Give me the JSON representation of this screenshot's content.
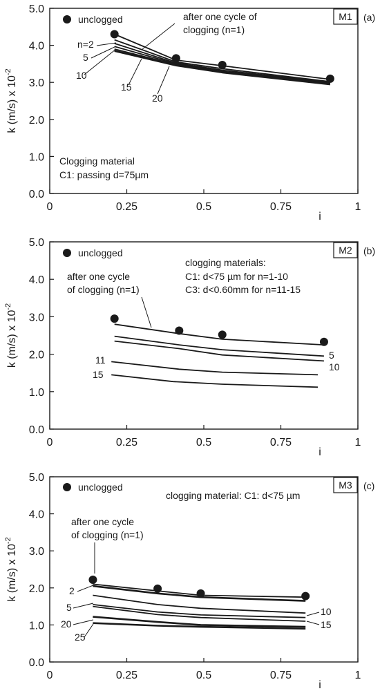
{
  "chart_data": [
    {
      "type": "line",
      "panel_tag": "M1",
      "panel_letter": "(a)",
      "xlabel": "i",
      "ylabel": "k (m/s) x 10",
      "ylabel_exp": "-2",
      "xlim": [
        0,
        1
      ],
      "ylim": [
        0,
        5
      ],
      "x_ticks": [
        "0",
        "0.25",
        "0.5",
        "0.75",
        "1"
      ],
      "y_ticks": [
        "0.0",
        "1.0",
        "2.0",
        "3.0",
        "4.0",
        "5.0"
      ],
      "legend": "unclogged",
      "unclogged": {
        "x": [
          0.21,
          0.41,
          0.56,
          0.91
        ],
        "y": [
          4.3,
          3.65,
          3.47,
          3.1
        ]
      },
      "series": [
        {
          "name": "n=1",
          "x": [
            0.21,
            0.41,
            0.56,
            0.91
          ],
          "y": [
            4.3,
            3.6,
            3.45,
            3.08
          ]
        },
        {
          "name": "n=2",
          "x": [
            0.21,
            0.41,
            0.56,
            0.91
          ],
          "y": [
            4.15,
            3.55,
            3.37,
            3.02
          ]
        },
        {
          "name": "5",
          "x": [
            0.21,
            0.41,
            0.56,
            0.91
          ],
          "y": [
            4.05,
            3.52,
            3.33,
            3.0
          ]
        },
        {
          "name": "10",
          "x": [
            0.21,
            0.41,
            0.56,
            0.91
          ],
          "y": [
            3.97,
            3.5,
            3.3,
            2.98
          ]
        },
        {
          "name": "15",
          "x": [
            0.21,
            0.41,
            0.56,
            0.91
          ],
          "y": [
            3.9,
            3.48,
            3.28,
            2.96
          ]
        },
        {
          "name": "20",
          "x": [
            0.21,
            0.41,
            0.56,
            0.91
          ],
          "y": [
            3.85,
            3.46,
            3.27,
            2.95
          ]
        }
      ],
      "annotations": [
        "after one cycle of",
        "clogging (n=1)",
        "Clogging material",
        "C1: passing d=75µm"
      ]
    },
    {
      "type": "line",
      "panel_tag": "M2",
      "panel_letter": "(b)",
      "xlabel": "i",
      "ylabel": "k (m/s) x 10",
      "ylabel_exp": "-2",
      "xlim": [
        0,
        1
      ],
      "ylim": [
        0,
        5
      ],
      "x_ticks": [
        "0",
        "0.25",
        "0.5",
        "0.75",
        "1"
      ],
      "y_ticks": [
        "0.0",
        "1.0",
        "2.0",
        "3.0",
        "4.0",
        "5.0"
      ],
      "legend": "unclogged",
      "unclogged": {
        "x": [
          0.21,
          0.42,
          0.56,
          0.89
        ],
        "y": [
          2.95,
          2.63,
          2.52,
          2.33
        ]
      },
      "series": [
        {
          "name": "n=1",
          "x": [
            0.21,
            0.42,
            0.56,
            0.89
          ],
          "y": [
            2.8,
            2.55,
            2.4,
            2.25
          ]
        },
        {
          "name": "5",
          "x": [
            0.21,
            0.42,
            0.56,
            0.89
          ],
          "y": [
            2.48,
            2.25,
            2.12,
            1.95
          ]
        },
        {
          "name": "10",
          "x": [
            0.21,
            0.42,
            0.56,
            0.89
          ],
          "y": [
            2.35,
            2.15,
            1.98,
            1.82
          ]
        },
        {
          "name": "11",
          "x": [
            0.2,
            0.42,
            0.56,
            0.87
          ],
          "y": [
            1.8,
            1.6,
            1.52,
            1.45
          ]
        },
        {
          "name": "15",
          "x": [
            0.2,
            0.4,
            0.56,
            0.87
          ],
          "y": [
            1.45,
            1.27,
            1.2,
            1.12
          ]
        }
      ],
      "annotations": [
        "after one cycle",
        "of clogging (n=1)",
        "clogging materials:",
        "C1: d<75 µm for n=1-10",
        "C3: d<0.60mm for n=11-15"
      ]
    },
    {
      "type": "line",
      "panel_tag": "M3",
      "panel_letter": "(c)",
      "xlabel": "i",
      "ylabel": "k (m/s) x 10",
      "ylabel_exp": "-2",
      "xlim": [
        0,
        1
      ],
      "ylim": [
        0,
        5
      ],
      "x_ticks": [
        "0",
        "0.25",
        "0.5",
        "0.75",
        "1"
      ],
      "y_ticks": [
        "0.0",
        "1.0",
        "2.0",
        "3.0",
        "4.0",
        "5.0"
      ],
      "legend": "unclogged",
      "unclogged": {
        "x": [
          0.14,
          0.35,
          0.49,
          0.83
        ],
        "y": [
          2.22,
          1.98,
          1.85,
          1.78
        ]
      },
      "series": [
        {
          "name": "n=1",
          "x": [
            0.14,
            0.35,
            0.49,
            0.83
          ],
          "y": [
            2.1,
            1.92,
            1.8,
            1.75
          ]
        },
        {
          "name": "2",
          "x": [
            0.14,
            0.35,
            0.49,
            0.83
          ],
          "y": [
            2.05,
            1.85,
            1.75,
            1.65
          ]
        },
        {
          "name": "5",
          "x": [
            0.14,
            0.35,
            0.49,
            0.83
          ],
          "y": [
            1.8,
            1.55,
            1.45,
            1.32
          ]
        },
        {
          "name": "10",
          "x": [
            0.14,
            0.35,
            0.49,
            0.83
          ],
          "y": [
            1.55,
            1.35,
            1.27,
            1.2
          ]
        },
        {
          "name": "15",
          "x": [
            0.14,
            0.35,
            0.49,
            0.83
          ],
          "y": [
            1.5,
            1.28,
            1.2,
            1.1
          ]
        },
        {
          "name": "20",
          "x": [
            0.14,
            0.35,
            0.49,
            0.83
          ],
          "y": [
            1.22,
            1.08,
            1.0,
            0.95
          ]
        },
        {
          "name": "25",
          "x": [
            0.14,
            0.35,
            0.49,
            0.83
          ],
          "y": [
            1.05,
            0.98,
            0.95,
            0.9
          ]
        }
      ],
      "annotations": [
        "clogging material: C1: d<75 µm",
        "after one cycle",
        "of clogging (n=1)"
      ]
    }
  ]
}
